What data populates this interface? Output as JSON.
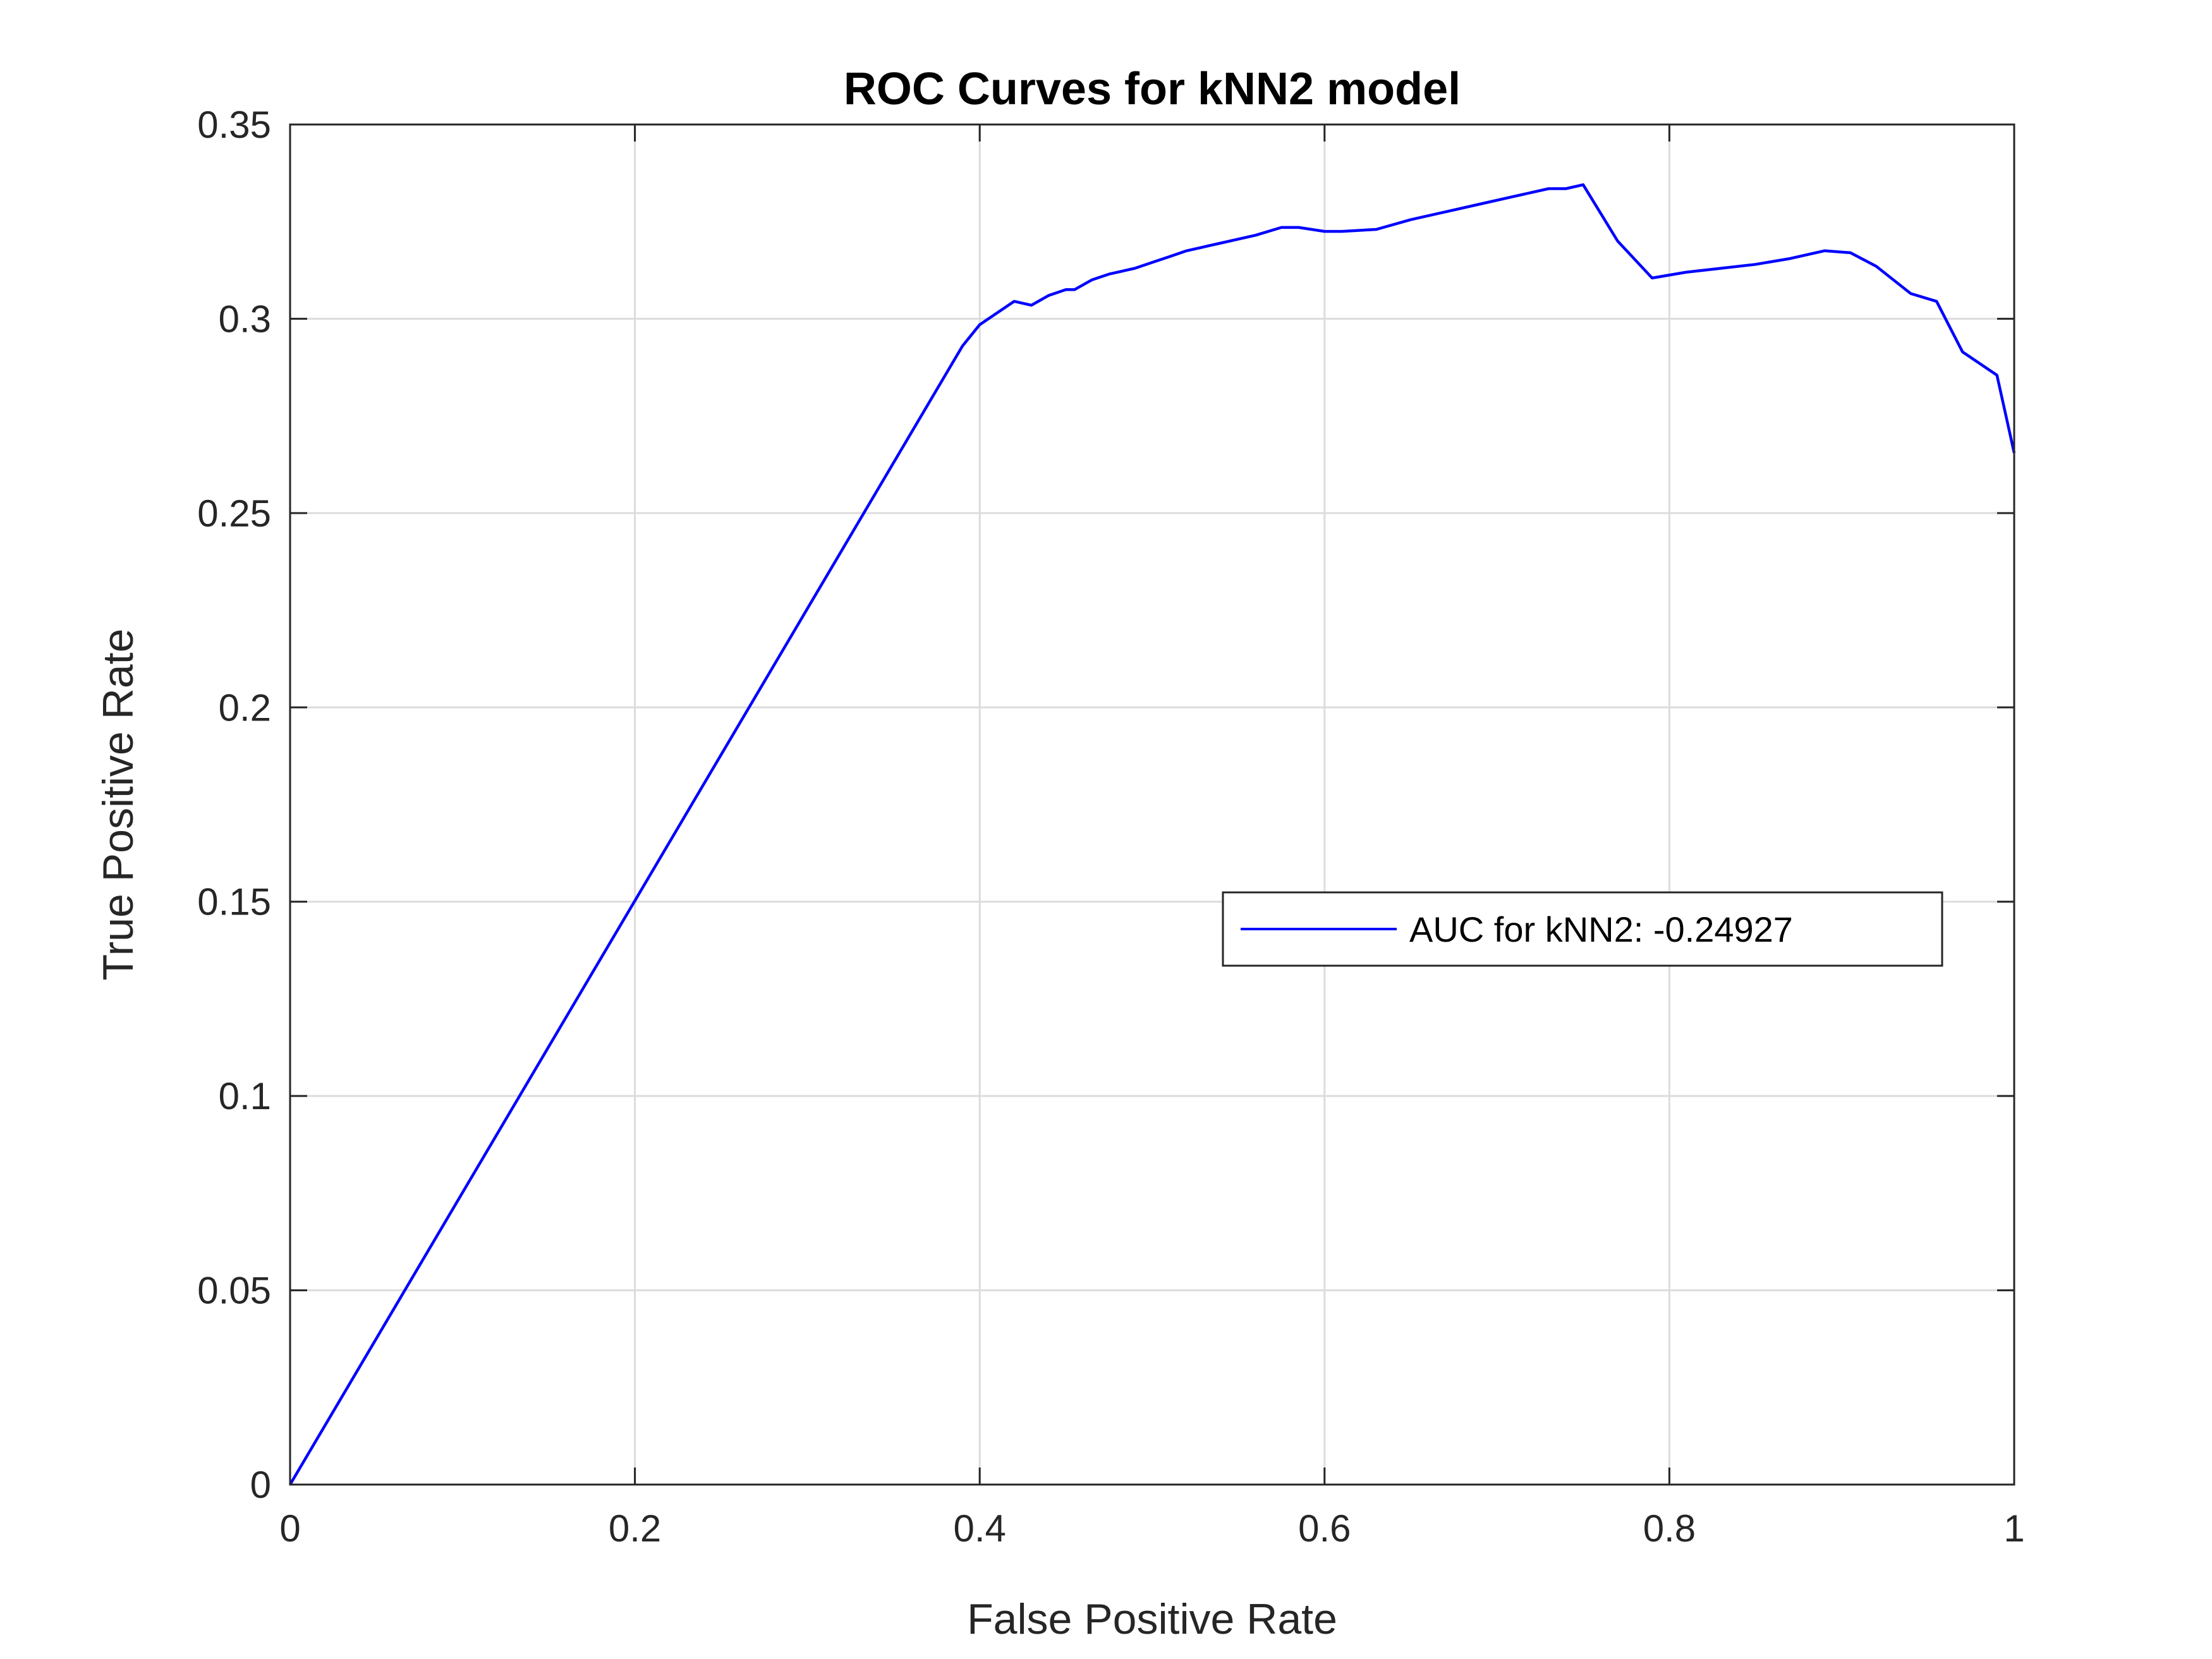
{
  "chart_data": {
    "type": "line",
    "title": "ROC Curves for kNN2 model",
    "xlabel": "False Positive Rate",
    "ylabel": "True Positive Rate",
    "xlim": [
      0,
      1
    ],
    "ylim": [
      0,
      0.35
    ],
    "xticks": [
      0,
      0.2,
      0.4,
      0.6,
      0.8,
      1
    ],
    "xtick_labels": [
      "0",
      "0.2",
      "0.4",
      "0.6",
      "0.8",
      "1"
    ],
    "yticks": [
      0,
      0.05,
      0.1,
      0.15,
      0.2,
      0.25,
      0.3,
      0.35
    ],
    "ytick_labels": [
      "0",
      "0.05",
      "0.1",
      "0.15",
      "0.2",
      "0.25",
      "0.3",
      "0.35"
    ],
    "grid": true,
    "legend_position": "right-middle",
    "series": [
      {
        "name": "AUC for kNN2: -0.24927",
        "color": "#0000ff",
        "x": [
          0,
          0.39,
          0.4,
          0.42,
          0.43,
          0.44,
          0.45,
          0.455,
          0.465,
          0.475,
          0.49,
          0.5,
          0.51,
          0.52,
          0.54,
          0.56,
          0.575,
          0.585,
          0.6,
          0.61,
          0.63,
          0.65,
          0.67,
          0.69,
          0.71,
          0.73,
          0.74,
          0.75,
          0.77,
          0.79,
          0.81,
          0.83,
          0.85,
          0.87,
          0.89,
          0.905,
          0.92,
          0.94,
          0.955,
          0.97,
          0.99,
          1.0
        ],
        "y": [
          0,
          0.293,
          0.2985,
          0.3045,
          0.3035,
          0.306,
          0.3075,
          0.3075,
          0.31,
          0.3115,
          0.313,
          0.3145,
          0.316,
          0.3175,
          0.3195,
          0.3215,
          0.3235,
          0.3235,
          0.3225,
          0.3225,
          0.323,
          0.3255,
          0.3275,
          0.3295,
          0.3315,
          0.3335,
          0.3335,
          0.3345,
          0.32,
          0.3105,
          0.312,
          0.313,
          0.314,
          0.3155,
          0.3175,
          0.317,
          0.3135,
          0.3065,
          0.3045,
          0.2915,
          0.2855,
          0.2655
        ]
      }
    ]
  }
}
